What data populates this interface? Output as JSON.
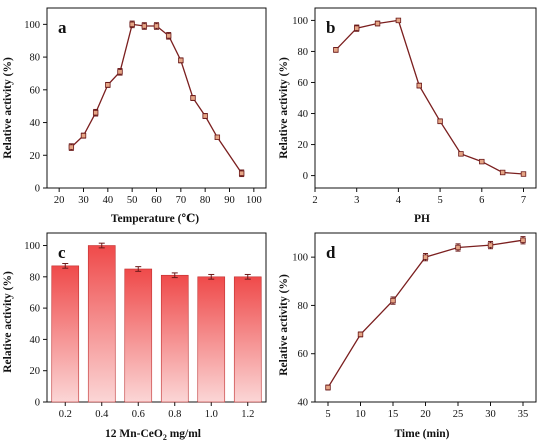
{
  "chart_data": [
    {
      "type": "line",
      "panel": "a",
      "xlabel": "Temperature (℃)",
      "ylabel": "Relative activity (%)",
      "xlim": [
        15,
        105
      ],
      "ylim": [
        0,
        110
      ],
      "xticks": [
        20,
        30,
        40,
        50,
        60,
        70,
        80,
        90,
        100
      ],
      "yticks": [
        0,
        20,
        40,
        60,
        80,
        100
      ],
      "x": [
        25,
        30,
        35,
        40,
        45,
        50,
        55,
        60,
        65,
        70,
        75,
        80,
        85,
        95
      ],
      "y": [
        25,
        32,
        46,
        63,
        71,
        100,
        99,
        99,
        93,
        78,
        55,
        44,
        31,
        9
      ],
      "err": [
        2,
        1.5,
        2,
        1.5,
        2,
        2,
        2,
        2,
        2,
        1.5,
        1.5,
        1.5,
        1,
        2
      ],
      "grid": false
    },
    {
      "type": "line",
      "panel": "b",
      "xlabel": "PH",
      "ylabel": "Relative activity (%)",
      "xlim": [
        2,
        7.3
      ],
      "ylim": [
        -8,
        108
      ],
      "xticks": [
        2,
        3,
        4,
        5,
        6,
        7
      ],
      "yticks": [
        0,
        20,
        40,
        60,
        80,
        100
      ],
      "x": [
        2.5,
        3,
        3.5,
        4,
        4.5,
        5,
        5.5,
        6,
        6.5,
        7
      ],
      "y": [
        81,
        95,
        98,
        100,
        58,
        35,
        14,
        9,
        2,
        1
      ],
      "err": [
        1.5,
        2,
        1.5,
        1,
        1.5,
        1.5,
        1,
        1,
        1,
        0.5
      ],
      "grid": false
    },
    {
      "type": "bar",
      "panel": "c",
      "xlabel": "12 Mn-CeO",
      "xlabel_sub": "2",
      "xlabel_unit": " mg/ml",
      "ylabel": "Relative activity (%)",
      "ylim": [
        0,
        108
      ],
      "yticks": [
        0,
        20,
        40,
        60,
        80,
        100
      ],
      "categories": [
        "0.2",
        "0.4",
        "0.6",
        "0.8",
        "1.0",
        "1.2"
      ],
      "values": [
        87,
        100,
        85,
        81,
        80,
        80
      ],
      "err": [
        1.5,
        1.5,
        1.5,
        1.5,
        1.5,
        1.5
      ],
      "bar_color_top": "#ef4a4a",
      "bar_color_bottom": "#fbd6d6",
      "grid": false
    },
    {
      "type": "line",
      "panel": "d",
      "xlabel": "Time (min)",
      "ylabel": "Relative activity (%)",
      "xlim": [
        3,
        37
      ],
      "ylim": [
        40,
        110
      ],
      "xticks": [
        5,
        10,
        15,
        20,
        25,
        30,
        35
      ],
      "yticks": [
        40,
        60,
        80,
        100
      ],
      "x": [
        5,
        10,
        15,
        20,
        25,
        30,
        35
      ],
      "y": [
        46,
        68,
        82,
        100,
        104,
        105,
        107
      ],
      "err": [
        1,
        1,
        1.5,
        1.5,
        1.5,
        1.5,
        1.5
      ],
      "grid": false
    }
  ],
  "style": {
    "line_color": "#7b1f1f",
    "marker_fill": "#e5a585",
    "marker_stroke": "#6b1a1a",
    "axis_color": "#111111"
  }
}
